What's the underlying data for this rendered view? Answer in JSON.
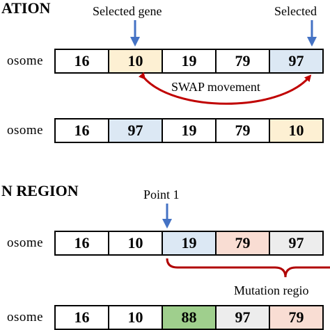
{
  "swap_section": {
    "heading": "ATION",
    "selected_gene_label": "Selected gene",
    "selected_gene_label_2": "Selected",
    "movement_label": "SWAP movement",
    "row1": {
      "label": "osome",
      "genes": [
        "16",
        "10",
        "19",
        "79",
        "97"
      ],
      "colors": [
        "white",
        "yellow",
        "white",
        "white",
        "blue"
      ]
    },
    "row2": {
      "label": "osome",
      "genes": [
        "16",
        "97",
        "19",
        "79",
        "10"
      ],
      "colors": [
        "white",
        "blue",
        "white",
        "white",
        "yellow"
      ]
    }
  },
  "region_section": {
    "heading": "N REGION",
    "point_label": "Point 1",
    "region_label": "Mutation regio",
    "row1": {
      "label": "osome",
      "genes": [
        "16",
        "10",
        "19",
        "79",
        "97"
      ],
      "colors": [
        "white",
        "white",
        "blue",
        "pink",
        "grey"
      ]
    },
    "row2": {
      "label": "osome",
      "genes": [
        "16",
        "10",
        "88",
        "97",
        "79"
      ],
      "colors": [
        "white",
        "white",
        "green",
        "grey",
        "pink"
      ]
    }
  },
  "colors": {
    "arrow_blue": "#4472c4",
    "swap_arc_red": "#c00000",
    "brace_red": "#b00000"
  }
}
